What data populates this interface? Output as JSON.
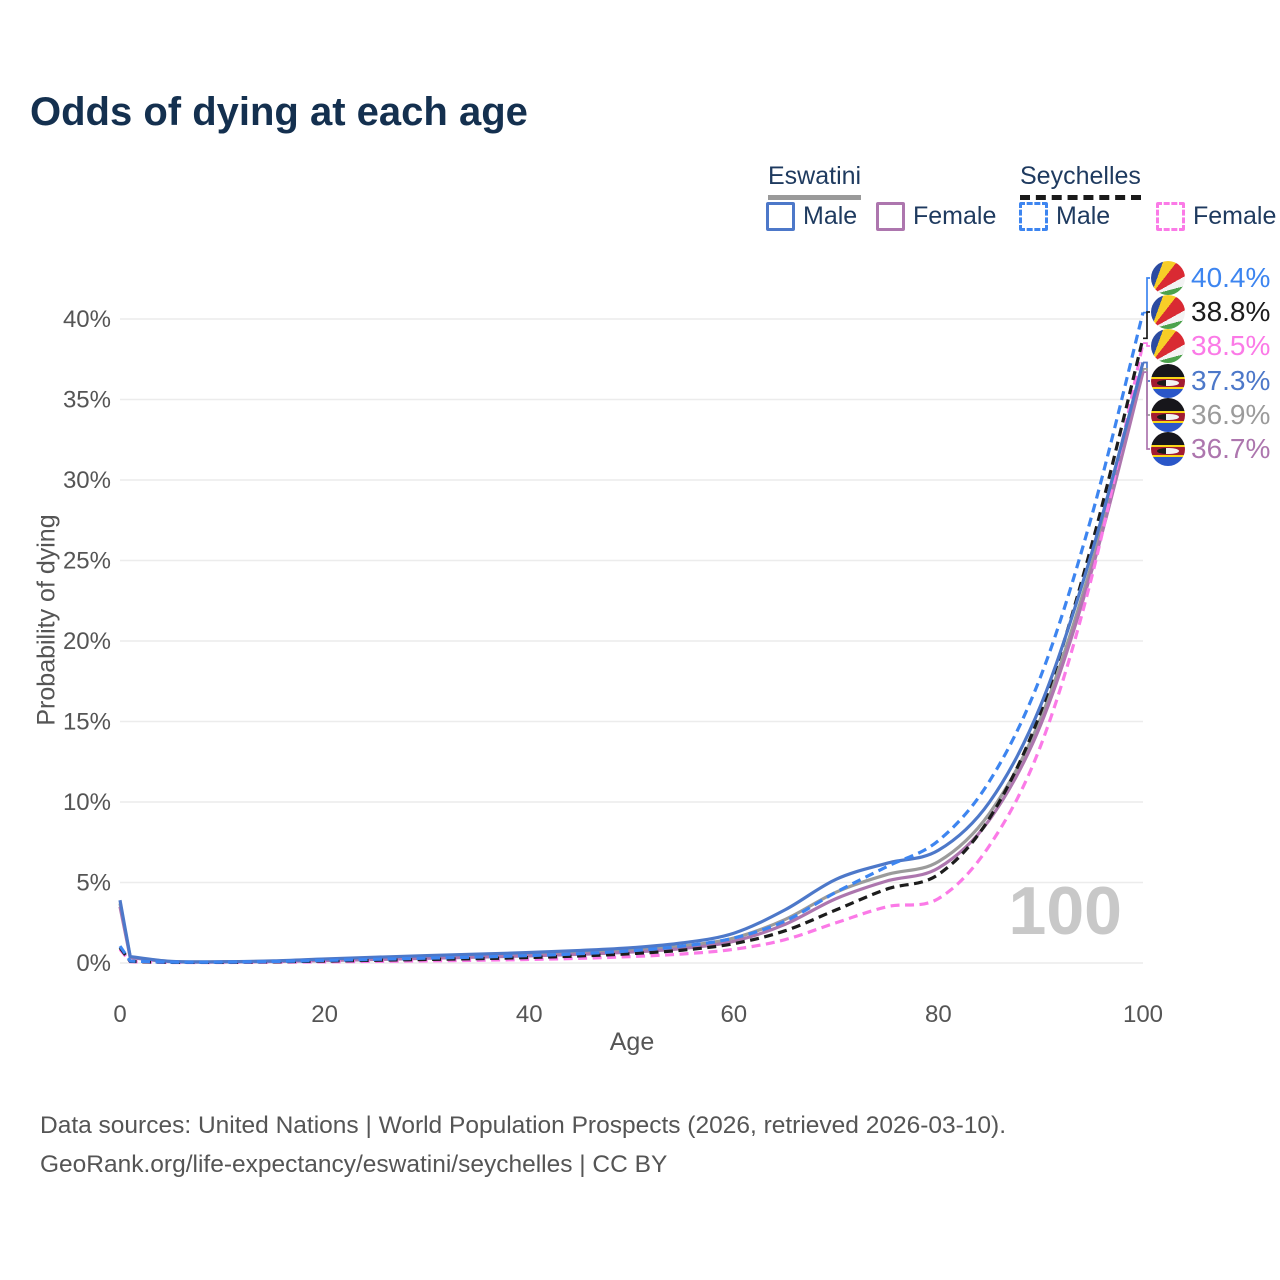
{
  "title": "Odds of dying at each age",
  "legend": {
    "groups": [
      {
        "label": "Eswatini",
        "style": "solid",
        "underline_color": "#9a9a9a"
      },
      {
        "label": "Seychelles",
        "style": "dashed",
        "underline_color": "#1a1a1a"
      }
    ],
    "items": [
      {
        "group": "Eswatini",
        "label": "Male",
        "color": "#4d78c9",
        "dashed": false
      },
      {
        "group": "Eswatini",
        "label": "Female",
        "color": "#ad76ae",
        "dashed": false
      },
      {
        "group": "Seychelles",
        "label": "Male",
        "color": "#3d85f0",
        "dashed": true
      },
      {
        "group": "Seychelles",
        "label": "Female",
        "color": "#fb7ae7",
        "dashed": true
      }
    ]
  },
  "watermark": "100",
  "footer": {
    "line1": "Data sources: United Nations | World Population Prospects (2026, retrieved 2026-03-10).",
    "line2": "GeoRank.org/life-expectancy/eswatini/seychelles | CC BY"
  },
  "chart_data": {
    "type": "line",
    "title": "Odds of dying at each age",
    "xlabel": "Age",
    "ylabel": "Probability of dying",
    "xlim": [
      0,
      100
    ],
    "ylim": [
      0,
      42
    ],
    "grid": "horizontal",
    "legend_position": "top-right",
    "x_ticks": [
      0,
      20,
      40,
      60,
      80,
      100
    ],
    "y_ticks": [
      0,
      5,
      10,
      15,
      20,
      25,
      30,
      35,
      40
    ],
    "y_tick_labels": [
      "0%",
      "5%",
      "10%",
      "15%",
      "20%",
      "25%",
      "30%",
      "35%",
      "40%"
    ],
    "x": [
      0,
      1,
      5,
      10,
      15,
      20,
      25,
      30,
      35,
      40,
      45,
      50,
      55,
      60,
      65,
      70,
      75,
      80,
      85,
      90,
      95,
      100
    ],
    "series": [
      {
        "name": "Eswatini",
        "country": "Eswatini",
        "color": "#9b9b9b",
        "dashed": false,
        "flag": "eswatini",
        "end_label": "36.9%",
        "end_value": 36.9,
        "values": [
          3.7,
          0.37,
          0.09,
          0.07,
          0.11,
          0.2,
          0.29,
          0.37,
          0.45,
          0.54,
          0.65,
          0.8,
          1.05,
          1.55,
          2.7,
          4.4,
          5.5,
          6.3,
          9.3,
          15.2,
          24.8,
          36.9
        ]
      },
      {
        "name": "Eswatini Female",
        "country": "Eswatini",
        "sex": "Female",
        "color": "#ad76ae",
        "dashed": false,
        "flag": "eswatini",
        "end_label": "36.7%",
        "end_value": 36.7,
        "values": [
          3.5,
          0.34,
          0.08,
          0.06,
          0.09,
          0.15,
          0.22,
          0.29,
          0.36,
          0.44,
          0.54,
          0.68,
          0.9,
          1.35,
          2.4,
          4.0,
          5.1,
          5.9,
          8.9,
          14.8,
          24.4,
          36.7
        ]
      },
      {
        "name": "Seychelles Female",
        "country": "Seychelles",
        "sex": "Female",
        "color": "#fb7ae7",
        "dashed": true,
        "flag": "seychelles",
        "end_label": "38.5%",
        "end_value": 38.5,
        "values": [
          0.85,
          0.08,
          0.03,
          0.03,
          0.05,
          0.07,
          0.1,
          0.13,
          0.17,
          0.22,
          0.29,
          0.4,
          0.56,
          0.85,
          1.45,
          2.5,
          3.5,
          4.0,
          7.3,
          13.5,
          24.0,
          38.5
        ]
      },
      {
        "name": "Seychelles",
        "country": "Seychelles",
        "color": "#1c1c1c",
        "dashed": true,
        "flag": "seychelles",
        "end_label": "38.8%",
        "end_value": 38.8,
        "values": [
          0.95,
          0.1,
          0.04,
          0.04,
          0.07,
          0.12,
          0.17,
          0.22,
          0.27,
          0.34,
          0.44,
          0.58,
          0.8,
          1.2,
          2.0,
          3.3,
          4.6,
          5.5,
          9.0,
          15.6,
          26.0,
          38.8
        ]
      },
      {
        "name": "Eswatini Male",
        "country": "Eswatini",
        "sex": "Male",
        "color": "#4d78c9",
        "dashed": false,
        "flag": "eswatini",
        "end_label": "37.3%",
        "end_value": 37.3,
        "values": [
          3.9,
          0.4,
          0.1,
          0.08,
          0.13,
          0.25,
          0.36,
          0.46,
          0.55,
          0.65,
          0.78,
          0.95,
          1.25,
          1.85,
          3.3,
          5.2,
          6.2,
          7.0,
          10.0,
          16.0,
          25.5,
          37.3
        ]
      },
      {
        "name": "Seychelles Male",
        "country": "Seychelles",
        "sex": "Male",
        "color": "#3d85f0",
        "dashed": true,
        "flag": "seychelles",
        "end_label": "40.4%",
        "end_value": 40.4,
        "values": [
          1.05,
          0.12,
          0.05,
          0.05,
          0.09,
          0.16,
          0.23,
          0.3,
          0.37,
          0.46,
          0.58,
          0.76,
          1.05,
          1.55,
          2.6,
          4.4,
          6.0,
          7.6,
          11.3,
          17.8,
          27.8,
          40.4
        ]
      }
    ]
  }
}
